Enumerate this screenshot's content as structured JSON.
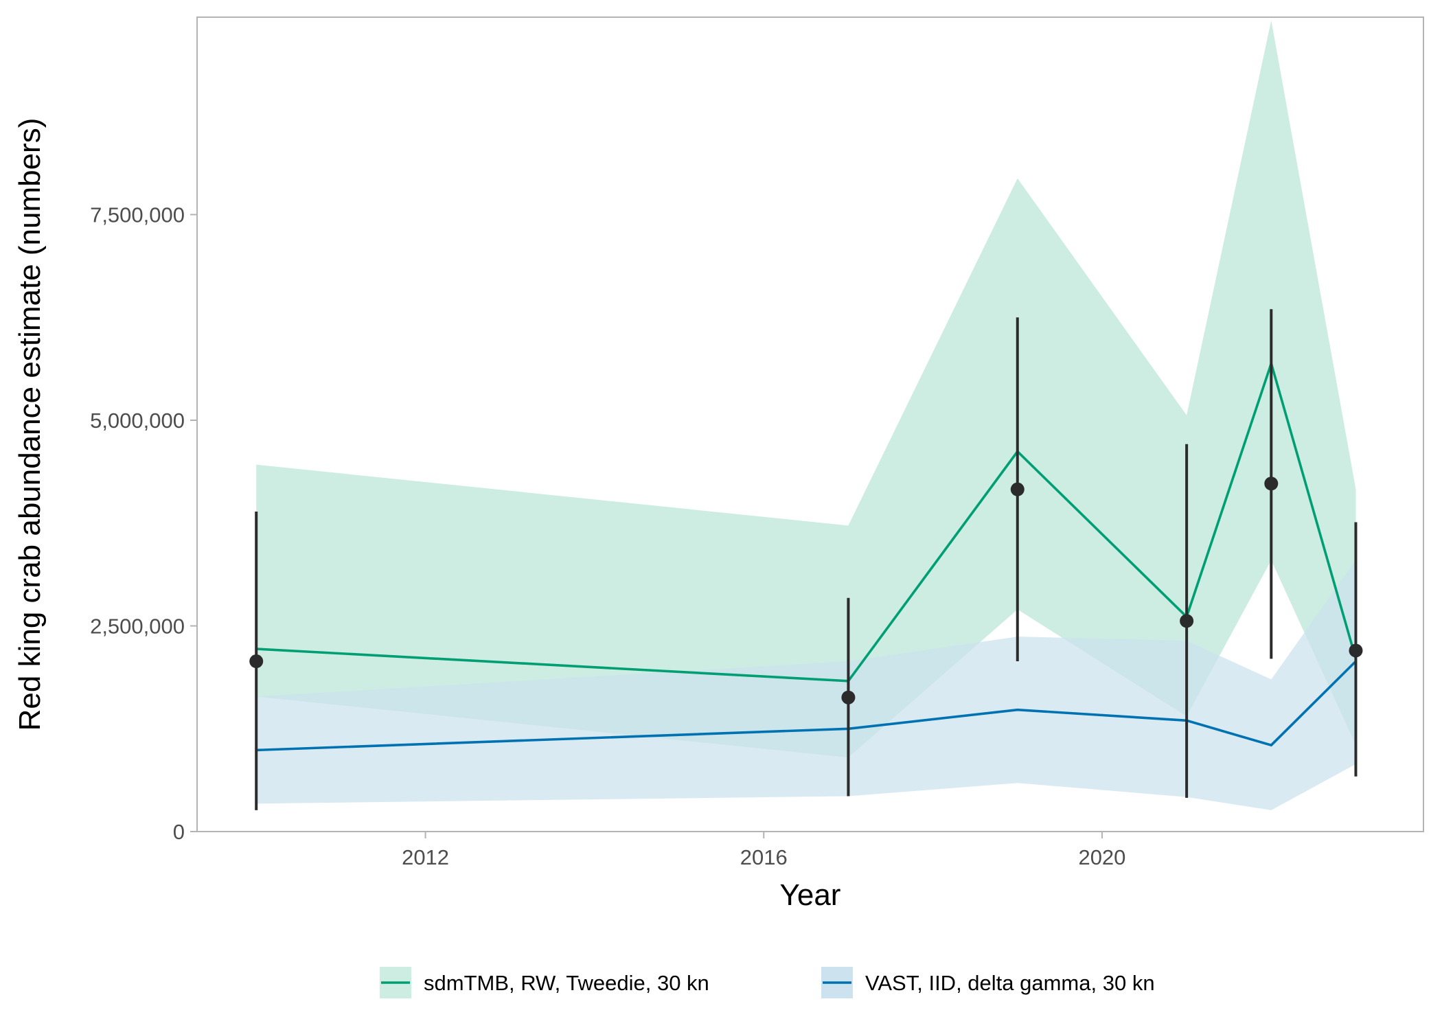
{
  "chart_data": {
    "type": "line",
    "title": "",
    "xlabel": "Year",
    "ylabel": "Red king crab abundance estimate (numbers)",
    "x_ticks": [
      2012,
      2016,
      2020
    ],
    "y_ticks": [
      0,
      2500000,
      5000000,
      7500000
    ],
    "y_tick_labels": [
      "0",
      "2,500,000",
      "5,000,000",
      "7,500,000"
    ],
    "xlim": [
      2009.3,
      2023.8
    ],
    "ylim": [
      0,
      9900000
    ],
    "grid": false,
    "legend_position": "bottom",
    "series": [
      {
        "name": "sdmTMB, RW, Tweedie, 30 kn",
        "color": "#009E73",
        "band_color": "#cdece2",
        "x": [
          2010,
          2017,
          2019,
          2021,
          2022,
          2023
        ],
        "y": [
          2220000,
          1830000,
          4620000,
          2610000,
          5690000,
          2100000
        ],
        "lower": [
          1640000,
          900000,
          2700000,
          1400000,
          3300000,
          1050000
        ],
        "upper": [
          4460000,
          3720000,
          7940000,
          5060000,
          9860000,
          4160000
        ]
      },
      {
        "name": "VAST, IID, delta gamma, 30 kn",
        "color": "#0072B2",
        "band_color": "#cce2ef",
        "x": [
          2010,
          2017,
          2019,
          2021,
          2022,
          2023
        ],
        "y": [
          990000,
          1250000,
          1480000,
          1350000,
          1050000,
          2070000
        ],
        "lower": [
          340000,
          430000,
          590000,
          420000,
          260000,
          820000
        ],
        "upper": [
          1640000,
          2070000,
          2370000,
          2320000,
          1850000,
          3300000
        ]
      }
    ],
    "observations": {
      "color": "#2b2b2b",
      "x": [
        2010,
        2017,
        2019,
        2021,
        2022,
        2023
      ],
      "y": [
        2070000,
        1630000,
        4160000,
        2560000,
        4230000,
        2200000
      ],
      "lower": [
        260000,
        430000,
        2070000,
        410000,
        2100000,
        670000
      ],
      "upper": [
        3890000,
        2840000,
        6250000,
        4710000,
        6350000,
        3760000
      ]
    }
  }
}
